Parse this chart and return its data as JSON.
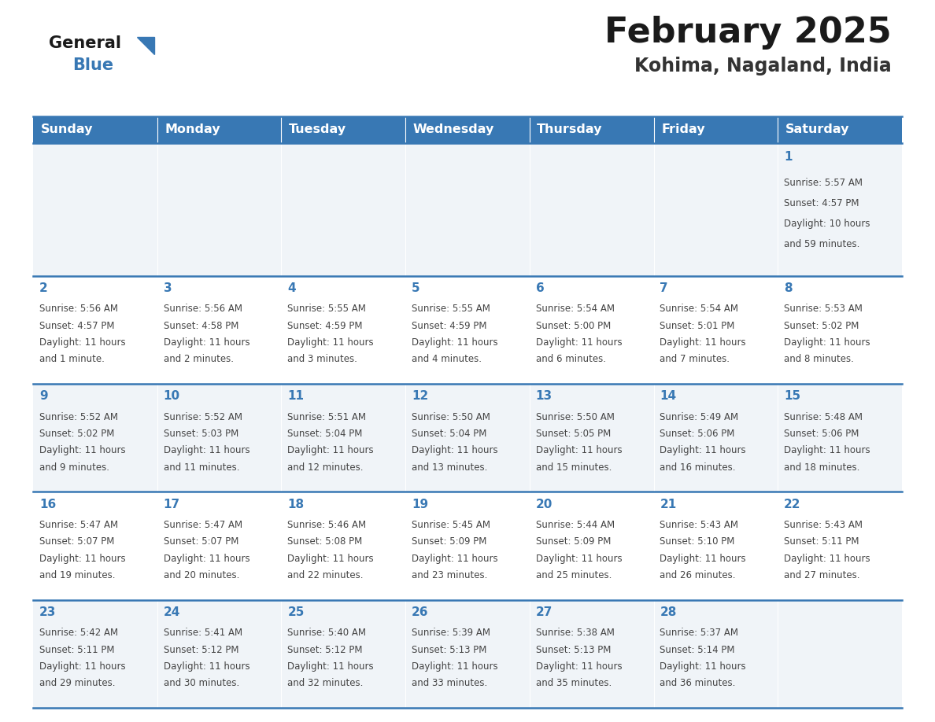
{
  "title": "February 2025",
  "subtitle": "Kohima, Nagaland, India",
  "days_of_week": [
    "Sunday",
    "Monday",
    "Tuesday",
    "Wednesday",
    "Thursday",
    "Friday",
    "Saturday"
  ],
  "header_bg_color": "#3878b4",
  "header_text_color": "#ffffff",
  "cell_bg_even": "#f0f4f8",
  "cell_bg_odd": "#ffffff",
  "day_number_color": "#3878b4",
  "text_color": "#444444",
  "border_color": "#3878b4",
  "logo_text_color": "#1a1a1a",
  "logo_blue_color": "#3878b4",
  "calendar_data": [
    [
      null,
      null,
      null,
      null,
      null,
      null,
      {
        "day": 1,
        "sunrise": "5:57 AM",
        "sunset": "4:57 PM",
        "daylight": "10 hours",
        "daylight2": "and 59 minutes."
      }
    ],
    [
      {
        "day": 2,
        "sunrise": "5:56 AM",
        "sunset": "4:57 PM",
        "daylight": "11 hours",
        "daylight2": "and 1 minute."
      },
      {
        "day": 3,
        "sunrise": "5:56 AM",
        "sunset": "4:58 PM",
        "daylight": "11 hours",
        "daylight2": "and 2 minutes."
      },
      {
        "day": 4,
        "sunrise": "5:55 AM",
        "sunset": "4:59 PM",
        "daylight": "11 hours",
        "daylight2": "and 3 minutes."
      },
      {
        "day": 5,
        "sunrise": "5:55 AM",
        "sunset": "4:59 PM",
        "daylight": "11 hours",
        "daylight2": "and 4 minutes."
      },
      {
        "day": 6,
        "sunrise": "5:54 AM",
        "sunset": "5:00 PM",
        "daylight": "11 hours",
        "daylight2": "and 6 minutes."
      },
      {
        "day": 7,
        "sunrise": "5:54 AM",
        "sunset": "5:01 PM",
        "daylight": "11 hours",
        "daylight2": "and 7 minutes."
      },
      {
        "day": 8,
        "sunrise": "5:53 AM",
        "sunset": "5:02 PM",
        "daylight": "11 hours",
        "daylight2": "and 8 minutes."
      }
    ],
    [
      {
        "day": 9,
        "sunrise": "5:52 AM",
        "sunset": "5:02 PM",
        "daylight": "11 hours",
        "daylight2": "and 9 minutes."
      },
      {
        "day": 10,
        "sunrise": "5:52 AM",
        "sunset": "5:03 PM",
        "daylight": "11 hours",
        "daylight2": "and 11 minutes."
      },
      {
        "day": 11,
        "sunrise": "5:51 AM",
        "sunset": "5:04 PM",
        "daylight": "11 hours",
        "daylight2": "and 12 minutes."
      },
      {
        "day": 12,
        "sunrise": "5:50 AM",
        "sunset": "5:04 PM",
        "daylight": "11 hours",
        "daylight2": "and 13 minutes."
      },
      {
        "day": 13,
        "sunrise": "5:50 AM",
        "sunset": "5:05 PM",
        "daylight": "11 hours",
        "daylight2": "and 15 minutes."
      },
      {
        "day": 14,
        "sunrise": "5:49 AM",
        "sunset": "5:06 PM",
        "daylight": "11 hours",
        "daylight2": "and 16 minutes."
      },
      {
        "day": 15,
        "sunrise": "5:48 AM",
        "sunset": "5:06 PM",
        "daylight": "11 hours",
        "daylight2": "and 18 minutes."
      }
    ],
    [
      {
        "day": 16,
        "sunrise": "5:47 AM",
        "sunset": "5:07 PM",
        "daylight": "11 hours",
        "daylight2": "and 19 minutes."
      },
      {
        "day": 17,
        "sunrise": "5:47 AM",
        "sunset": "5:07 PM",
        "daylight": "11 hours",
        "daylight2": "and 20 minutes."
      },
      {
        "day": 18,
        "sunrise": "5:46 AM",
        "sunset": "5:08 PM",
        "daylight": "11 hours",
        "daylight2": "and 22 minutes."
      },
      {
        "day": 19,
        "sunrise": "5:45 AM",
        "sunset": "5:09 PM",
        "daylight": "11 hours",
        "daylight2": "and 23 minutes."
      },
      {
        "day": 20,
        "sunrise": "5:44 AM",
        "sunset": "5:09 PM",
        "daylight": "11 hours",
        "daylight2": "and 25 minutes."
      },
      {
        "day": 21,
        "sunrise": "5:43 AM",
        "sunset": "5:10 PM",
        "daylight": "11 hours",
        "daylight2": "and 26 minutes."
      },
      {
        "day": 22,
        "sunrise": "5:43 AM",
        "sunset": "5:11 PM",
        "daylight": "11 hours",
        "daylight2": "and 27 minutes."
      }
    ],
    [
      {
        "day": 23,
        "sunrise": "5:42 AM",
        "sunset": "5:11 PM",
        "daylight": "11 hours",
        "daylight2": "and 29 minutes."
      },
      {
        "day": 24,
        "sunrise": "5:41 AM",
        "sunset": "5:12 PM",
        "daylight": "11 hours",
        "daylight2": "and 30 minutes."
      },
      {
        "day": 25,
        "sunrise": "5:40 AM",
        "sunset": "5:12 PM",
        "daylight": "11 hours",
        "daylight2": "and 32 minutes."
      },
      {
        "day": 26,
        "sunrise": "5:39 AM",
        "sunset": "5:13 PM",
        "daylight": "11 hours",
        "daylight2": "and 33 minutes."
      },
      {
        "day": 27,
        "sunrise": "5:38 AM",
        "sunset": "5:13 PM",
        "daylight": "11 hours",
        "daylight2": "and 35 minutes."
      },
      {
        "day": 28,
        "sunrise": "5:37 AM",
        "sunset": "5:14 PM",
        "daylight": "11 hours",
        "daylight2": "and 36 minutes."
      },
      null
    ]
  ]
}
